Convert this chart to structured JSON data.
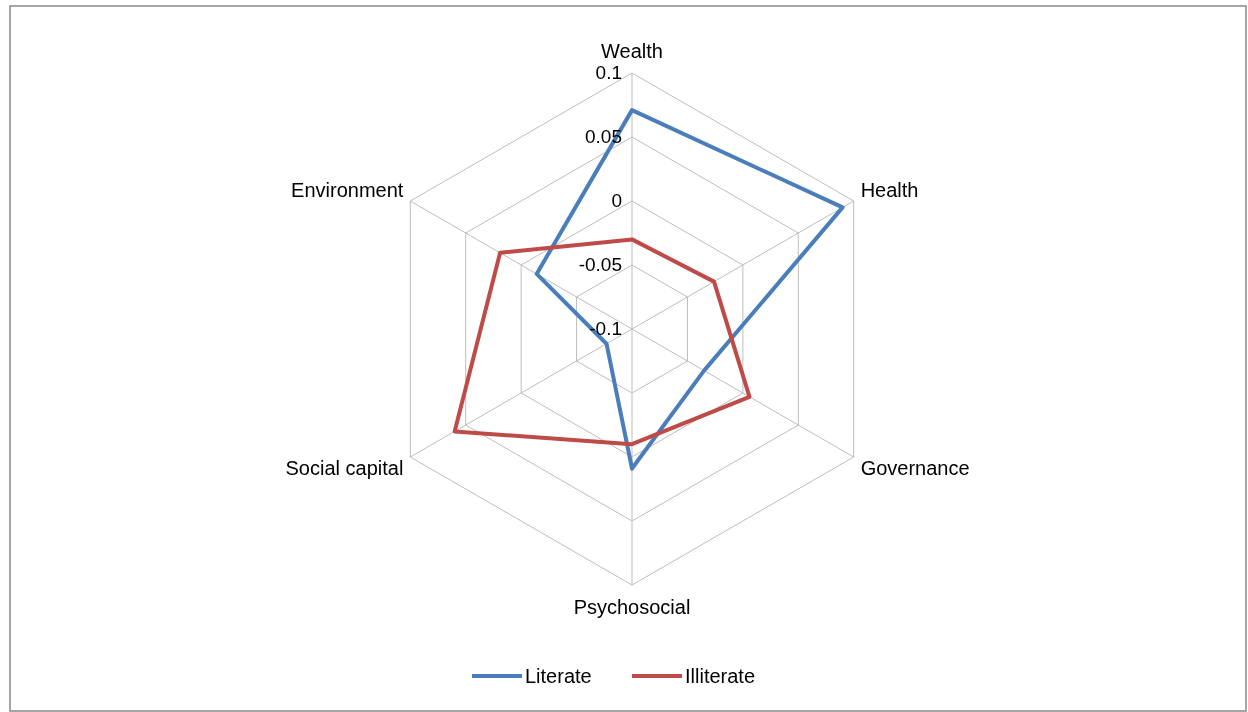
{
  "chart_data": {
    "type": "radar",
    "categories": [
      "Wealth",
      "Health",
      "Governance",
      "Psychosocial",
      "Social capital",
      "Environment"
    ],
    "series": [
      {
        "name": "Literate",
        "color": "#4a7ebb",
        "values": [
          0.071,
          0.09,
          -0.035,
          0.009,
          -0.077,
          -0.014
        ]
      },
      {
        "name": "Illiterate",
        "color": "#be4b48",
        "values": [
          -0.03,
          -0.026,
          0.006,
          -0.01,
          0.06,
          0.019
        ]
      }
    ],
    "ylim": [
      -0.1,
      0.1
    ],
    "yticks": [
      {
        "value": -0.1,
        "label": "-0.1"
      },
      {
        "value": -0.05,
        "label": "-0.05"
      },
      0,
      0.05,
      0.1
    ],
    "grid": true,
    "legend": "bottom",
    "marker": "none",
    "line_style": "solid"
  }
}
